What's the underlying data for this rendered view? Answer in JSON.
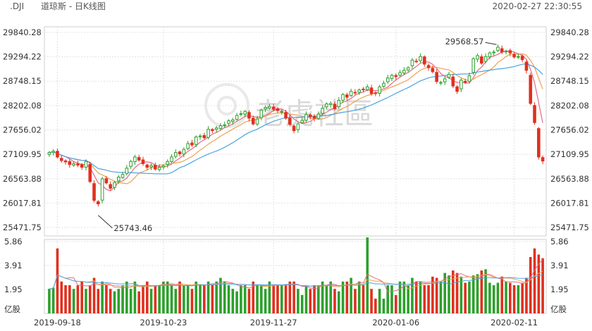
{
  "header": {
    "symbol": ".DJI",
    "name": "道琼斯 - 日K线图",
    "datetime": "2020-02-27 22:30:55"
  },
  "watermark": "老虎社區",
  "colors": {
    "up": "#2ca02c",
    "down": "#e0301e",
    "ma_short": "#e36b86",
    "ma_mid": "#f0a04b",
    "ma_long": "#4aa3df",
    "grid": "#e2e2e2"
  },
  "chart_data": [
    {
      "type": "candlestick",
      "title": "",
      "price_ticks": [
        "29840.28",
        "29294.22",
        "28748.15",
        "28202.08",
        "27656.02",
        "27109.95",
        "26563.88",
        "26017.81",
        "25471.75"
      ],
      "ylim": [
        25471.75,
        29840.28
      ],
      "date_ticks": [
        "2019-09-18",
        "2019-10-23",
        "2019-11-27",
        "2020-01-06",
        "2020-02-11"
      ],
      "annotations": [
        {
          "label": "29568.57",
          "point": "high",
          "value": 29568.57
        },
        {
          "label": "25743.46",
          "point": "low",
          "value": 25743.46
        }
      ],
      "closes": [
        27150,
        27180,
        27050,
        26970,
        26940,
        26880,
        26900,
        26870,
        26820,
        26950,
        26500,
        26080,
        26000,
        26560,
        26470,
        26350,
        26480,
        26600,
        26660,
        26800,
        26950,
        27050,
        26980,
        26900,
        26820,
        26860,
        26780,
        26820,
        26850,
        26950,
        27050,
        27150,
        27120,
        27220,
        27350,
        27320,
        27500,
        27520,
        27480,
        27670,
        27640,
        27700,
        27750,
        27770,
        27860,
        27880,
        27980,
        28020,
        28070,
        27920,
        27790,
        27900,
        28100,
        28160,
        28180,
        28120,
        28090,
        28070,
        27920,
        27780,
        27640,
        27790,
        27870,
        28000,
        27950,
        27920,
        28010,
        28140,
        28240,
        28250,
        28130,
        28320,
        28450,
        28390,
        28520,
        28490,
        28550,
        28570,
        28620,
        28470,
        28470,
        28620,
        28700,
        28820,
        28880,
        28850,
        28940,
        28990,
        29050,
        29220,
        29190,
        29300,
        29130,
        29050,
        28960,
        28740,
        28720,
        28800,
        28900,
        28640,
        28520,
        28770,
        28720,
        28870,
        29250,
        29320,
        29150,
        29300,
        29380,
        29400,
        29510,
        29400,
        29420,
        29380,
        29290,
        29300,
        29230,
        28990,
        28250,
        27820,
        27050,
        26960
      ],
      "volumes": [
        2.0,
        2.1,
        5.3,
        2.6,
        2.3,
        2.3,
        2.0,
        2.3,
        2.6,
        2.0,
        2.3,
        2.9,
        2.0,
        2.6,
        2.3,
        2.0,
        1.8,
        2.0,
        2.3,
        2.6,
        2.0,
        2.6,
        1.8,
        2.3,
        2.6,
        2.0,
        2.3,
        2.3,
        2.6,
        2.6,
        2.3,
        2.0,
        2.6,
        2.3,
        2.3,
        2.0,
        2.6,
        2.3,
        2.3,
        2.6,
        2.3,
        2.6,
        2.9,
        2.6,
        2.3,
        2.0,
        1.8,
        2.3,
        2.3,
        2.0,
        2.6,
        2.3,
        2.3,
        2.0,
        2.6,
        2.3,
        2.3,
        2.3,
        2.3,
        2.6,
        2.6,
        2.0,
        1.5,
        2.3,
        2.0,
        2.3,
        2.3,
        2.6,
        2.3,
        2.6,
        2.0,
        1.8,
        2.6,
        2.6,
        2.9,
        2.0,
        2.6,
        2.3,
        6.2,
        2.0,
        1.2,
        2.0,
        1.2,
        2.3,
        2.3,
        1.5,
        2.6,
        2.6,
        2.3,
        2.9,
        2.6,
        2.6,
        2.3,
        2.3,
        3.0,
        2.9,
        2.6,
        3.3,
        3.1,
        3.5,
        3.3,
        3.0,
        2.5,
        2.6,
        3.1,
        3.2,
        3.5,
        3.6,
        2.5,
        2.3,
        2.5,
        3.0,
        2.6,
        2.5,
        2.3,
        2.3,
        2.5,
        2.9,
        4.6,
        5.3,
        4.8,
        4.5
      ],
      "volume_ticks": [
        "5.86",
        "3.91",
        "1.95"
      ],
      "volume_ylim": [
        0,
        5.86
      ],
      "volume_unit": "亿股"
    }
  ]
}
